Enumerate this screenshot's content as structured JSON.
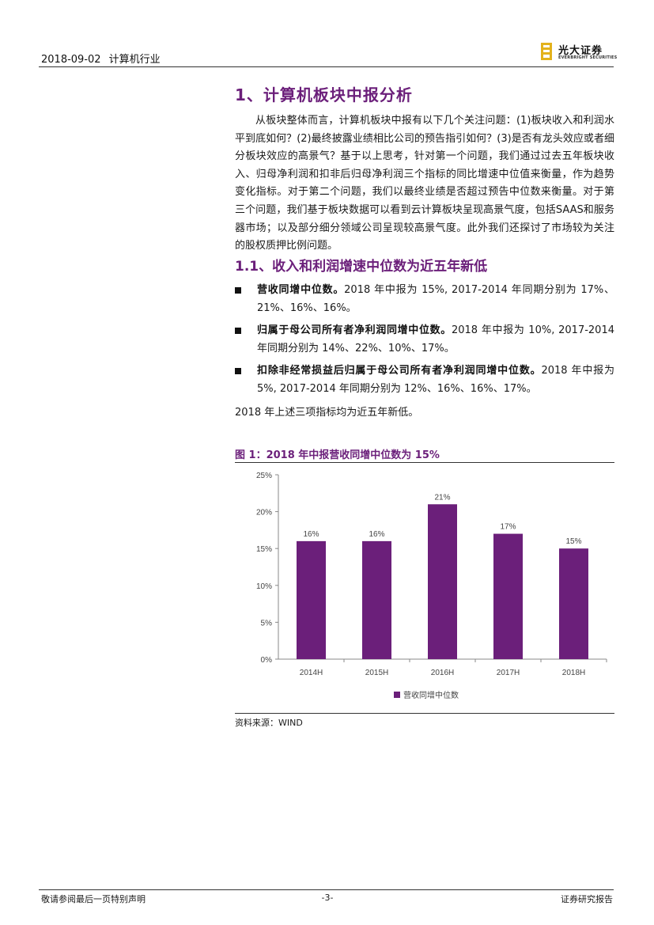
{
  "header": {
    "date": "2018-09-02",
    "industry": "计算机行业",
    "logo_cn": "光大证券",
    "logo_en": "EVERBRIGHT SECURITIES"
  },
  "section": {
    "title": "1、计算机板块中报分析",
    "intro": "从板块整体而言，计算机板块中报有以下几个关注问题：(1)板块收入和利润水平到底如何？(2)最终披露业绩相比公司的预告指引如何？(3)是否有龙头效应或者细分板块效应的高景气？基于以上思考，针对第一个问题，我们通过过去五年板块收入、归母净利润和扣非后归母净利润三个指标的同比增速中位值来衡量，作为趋势变化指标。对于第二个问题，我们以最终业绩是否超过预告中位数来衡量。对于第三个问题，我们基于板块数据可以看到云计算板块呈现高景气度，包括SAAS和服务器市场；以及部分细分领域公司呈现较高景气度。此外我们还探讨了市场较为关注的股权质押比例问题。"
  },
  "subsection": {
    "title": "1.1、收入和利润增速中位数为近五年新低",
    "bullets": [
      {
        "bold": "营收同增中位数。",
        "text": "2018 年中报为 15%, 2017-2014 年同期分别为 17%、21%、16%、16%。"
      },
      {
        "bold": "归属于母公司所有者净利润同增中位数。",
        "text": "2018 年中报为 10%, 2017-2014 年同期分别为 14%、22%、10%、17%。"
      },
      {
        "bold": "扣除非经常损益后归属于母公司所有者净利润同增中位数。",
        "text": "2018 年中报为 5%, 2017-2014 年同期分别为 12%、16%、16%、17%。"
      }
    ],
    "conclusion": "2018 年上述三项指标均为近五年新低。"
  },
  "figure": {
    "title": "图 1：2018 年中报营收同增中位数为 15%",
    "source": "资料来源：WIND"
  },
  "chart_data": {
    "type": "bar",
    "categories": [
      "2014H",
      "2015H",
      "2016H",
      "2017H",
      "2018H"
    ],
    "series": [
      {
        "name": "营收同增中位数",
        "values": [
          16,
          16,
          21,
          17,
          15
        ]
      }
    ],
    "data_labels": [
      "16%",
      "16%",
      "21%",
      "17%",
      "15%"
    ],
    "yticks": [
      "0%",
      "5%",
      "10%",
      "15%",
      "20%",
      "25%"
    ],
    "ylim": [
      0,
      25
    ],
    "grid": false,
    "legend": "bottom",
    "bar_color": "#6b1f7a"
  },
  "footer": {
    "left": "敬请参阅最后一页特别声明",
    "page": "-3-",
    "right": "证券研究报告"
  }
}
